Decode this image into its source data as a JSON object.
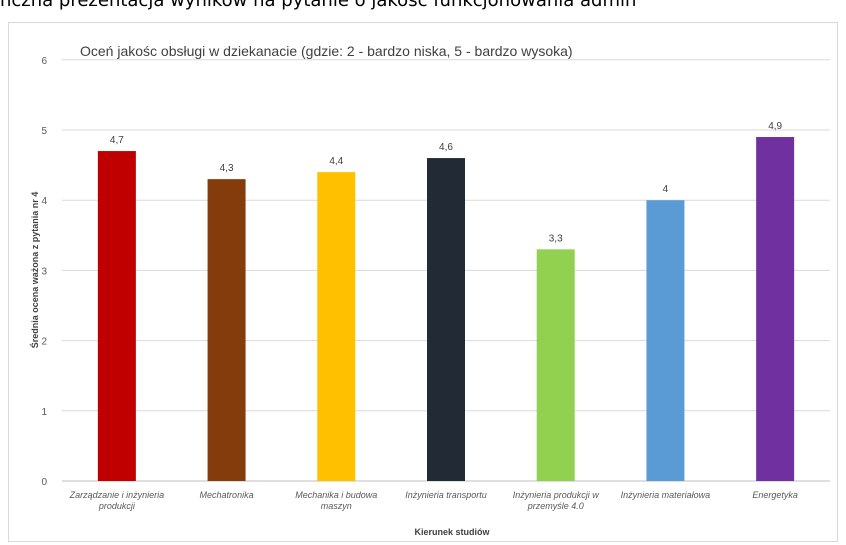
{
  "page_heading": "nczna prezentacja wyników na pytanie o jakość funkcjonowania admin",
  "chart_data": {
    "type": "bar",
    "title": "Oceń jakośc obsługi w dziekanacie (gdzie: 2 - bardzo niska, 5 - bardzo wysoka)",
    "xlabel": "Kierunek studiów",
    "ylabel": "Średnia ocena ważona z pytania nr 4",
    "ylim": [
      0,
      6
    ],
    "yticks": [
      "0",
      "1",
      "2",
      "3",
      "4",
      "5",
      "6"
    ],
    "grid": true,
    "categories": [
      [
        "Zarządzanie i inżynieria",
        "produkcji"
      ],
      [
        "Mechatronika"
      ],
      [
        "Mechanika i budowa",
        "maszyn"
      ],
      [
        "Inżynieria transportu"
      ],
      [
        "Inżynieria produkcji w",
        "przemyśle 4.0"
      ],
      [
        "Inżynieria materiałowa"
      ],
      [
        "Energetyka"
      ]
    ],
    "values": [
      4.7,
      4.3,
      4.4,
      4.6,
      3.3,
      4.0,
      4.9
    ],
    "data_labels": [
      "4,7",
      "4,3",
      "4,4",
      "4,6",
      "3,3",
      "4",
      "4,9"
    ],
    "colors": [
      "#c00000",
      "#843c0c",
      "#ffc000",
      "#222a35",
      "#92d050",
      "#5b9bd5",
      "#7030a0"
    ]
  }
}
